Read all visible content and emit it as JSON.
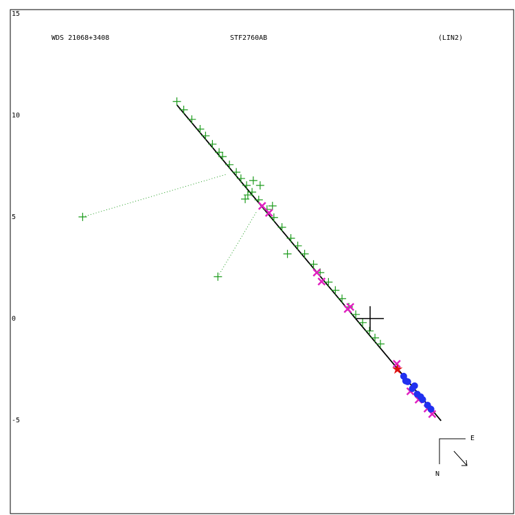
{
  "chart_data": {
    "type": "scatter",
    "annotations": [
      "WDS 21068+3408",
      "STF2760AB",
      "(LIN2)",
      "E",
      "N"
    ],
    "xlim": [
      -17.8,
      7.1
    ],
    "ylim": [
      -9.6,
      15.2
    ],
    "yticks": [
      -5,
      0,
      5,
      10,
      15
    ],
    "origin": {
      "x": 0,
      "y": 0,
      "color": "#000000"
    },
    "series": [
      {
        "marker": "plus",
        "color": "#1a9a1a",
        "x": [
          -9.56,
          -9.22,
          -8.82,
          -8.41,
          -8.14,
          -7.8,
          -7.47,
          -7.3,
          -6.96,
          -6.62,
          -6.39,
          -6.11,
          -5.84,
          -5.51,
          -5.1,
          -4.76,
          -4.36,
          -3.92,
          -3.58,
          -3.24,
          -2.8,
          -2.47,
          -2.06,
          -1.72,
          -1.39,
          -1.05,
          -0.71,
          -0.37,
          -0.03,
          0.24,
          0.51,
          -14.22,
          -7.53,
          -5.78,
          -5.44,
          -4.09,
          -4.83,
          -6.18,
          -6.05
        ],
        "y": [
          10.68,
          10.27,
          9.8,
          9.32,
          8.99,
          8.58,
          8.18,
          7.97,
          7.57,
          7.2,
          6.89,
          6.55,
          6.22,
          5.84,
          5.37,
          4.97,
          4.49,
          3.95,
          3.58,
          3.18,
          2.67,
          2.26,
          1.79,
          1.39,
          0.98,
          0.57,
          0.2,
          -0.2,
          -0.61,
          -0.95,
          -1.25,
          5.0,
          2.06,
          6.79,
          6.55,
          3.18,
          5.54,
          5.88,
          6.08
        ]
      },
      {
        "marker": "x",
        "color": "#e020c0",
        "x": [
          -5.34,
          -5.0,
          -2.64,
          -2.4,
          -1.11,
          -0.98,
          1.32,
          1.99,
          2.4,
          2.84,
          3.07
        ],
        "y": [
          5.54,
          5.2,
          2.26,
          1.82,
          0.47,
          0.57,
          -2.23,
          -3.58,
          -3.99,
          -4.43,
          -4.7
        ]
      },
      {
        "marker": "circle",
        "color": "#2030f0",
        "x": [
          1.66,
          1.86,
          2.09,
          2.33,
          2.6,
          2.84,
          3.01,
          1.76,
          2.2,
          2.5
        ],
        "y": [
          -2.84,
          -3.11,
          -3.45,
          -3.72,
          -3.99,
          -4.26,
          -4.46,
          -3.07,
          -3.31,
          -3.85
        ]
      },
      {
        "marker": "star",
        "color": "#e01010",
        "x": [
          1.35
        ],
        "y": [
          -2.5
        ]
      }
    ],
    "lines": [
      {
        "color": "#000000",
        "style": "solid",
        "x": [
          -9.56,
          3.51
        ],
        "y": [
          10.51,
          -5.03
        ]
      },
      {
        "color": "#1a9a1a",
        "style": "dotted",
        "x": [
          -14.22,
          -7.13
        ],
        "y": [
          5.0,
          7.09
        ]
      },
      {
        "color": "#1a9a1a",
        "style": "dotted",
        "x": [
          -7.53,
          -5.61
        ],
        "y": [
          2.06,
          5.27
        ]
      }
    ]
  }
}
